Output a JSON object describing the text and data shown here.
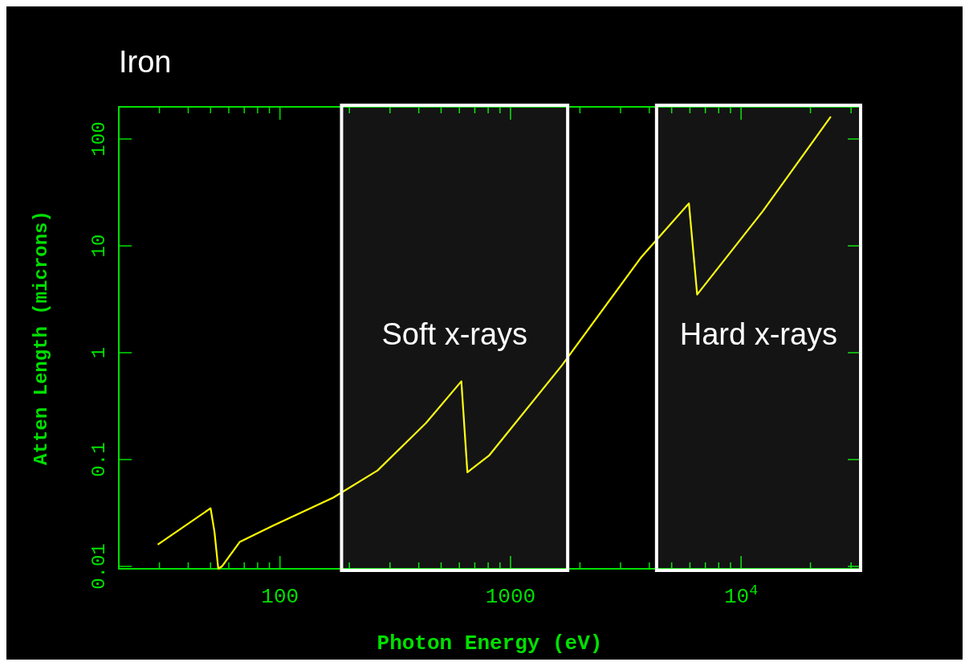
{
  "chart_data": {
    "type": "line",
    "title": "Iron",
    "xlabel": "Photon Energy (eV)",
    "ylabel": "Atten Length (microns)",
    "log": "xy",
    "xlim": [
      20,
      33000
    ],
    "ylim": [
      0.0095,
      200
    ],
    "xticks": [
      {
        "value": 30,
        "label": null
      },
      {
        "value": 40,
        "label": null
      },
      {
        "value": 50,
        "label": null
      },
      {
        "value": 60,
        "label": null
      },
      {
        "value": 70,
        "label": null
      },
      {
        "value": 80,
        "label": null
      },
      {
        "value": 90,
        "label": null
      },
      100,
      {
        "value": 200,
        "label": null
      },
      {
        "value": 300,
        "label": null
      },
      {
        "value": 400,
        "label": null
      },
      {
        "value": 500,
        "label": null
      },
      {
        "value": 600,
        "label": null
      },
      {
        "value": 700,
        "label": null
      },
      {
        "value": 800,
        "label": null
      },
      {
        "value": 900,
        "label": null
      },
      1000,
      {
        "value": 2000,
        "label": null
      },
      {
        "value": 3000,
        "label": null
      },
      {
        "value": 4000,
        "label": null
      },
      {
        "value": 5000,
        "label": null
      },
      {
        "value": 6000,
        "label": null
      },
      {
        "value": 7000,
        "label": null
      },
      {
        "value": 8000,
        "label": null
      },
      {
        "value": 9000,
        "label": null
      },
      {
        "value": 10000,
        "label": "10$^{4}$"
      },
      {
        "value": 20000,
        "label": null
      },
      {
        "value": 30000,
        "label": null
      }
    ],
    "yticks": [
      0.01,
      0.1,
      1,
      10,
      100
    ],
    "grid": false,
    "marker": "none",
    "line_style": "solid",
    "series": [
      {
        "color": "#ffff00",
        "x": [
          29.5,
          50,
          52,
          54,
          56,
          67,
          93,
          170,
          265,
          430,
          612,
          650,
          810,
          1670,
          3700,
          5940,
          6450,
          12400,
          24500
        ],
        "values": [
          0.016,
          0.035,
          0.021,
          0.0095,
          0.01,
          0.017,
          0.024,
          0.044,
          0.079,
          0.22,
          0.54,
          0.076,
          0.11,
          0.76,
          7.9,
          25,
          3.5,
          21,
          162
        ]
      }
    ],
    "bands": [
      {
        "axis": "x",
        "from": 185,
        "to": 1770,
        "label": "Soft x-rays",
        "color": "#ffffff"
      },
      {
        "axis": "x",
        "from": 4300,
        "to": 33000,
        "label": "Hard x-rays",
        "color": "#ffffff"
      }
    ]
  }
}
